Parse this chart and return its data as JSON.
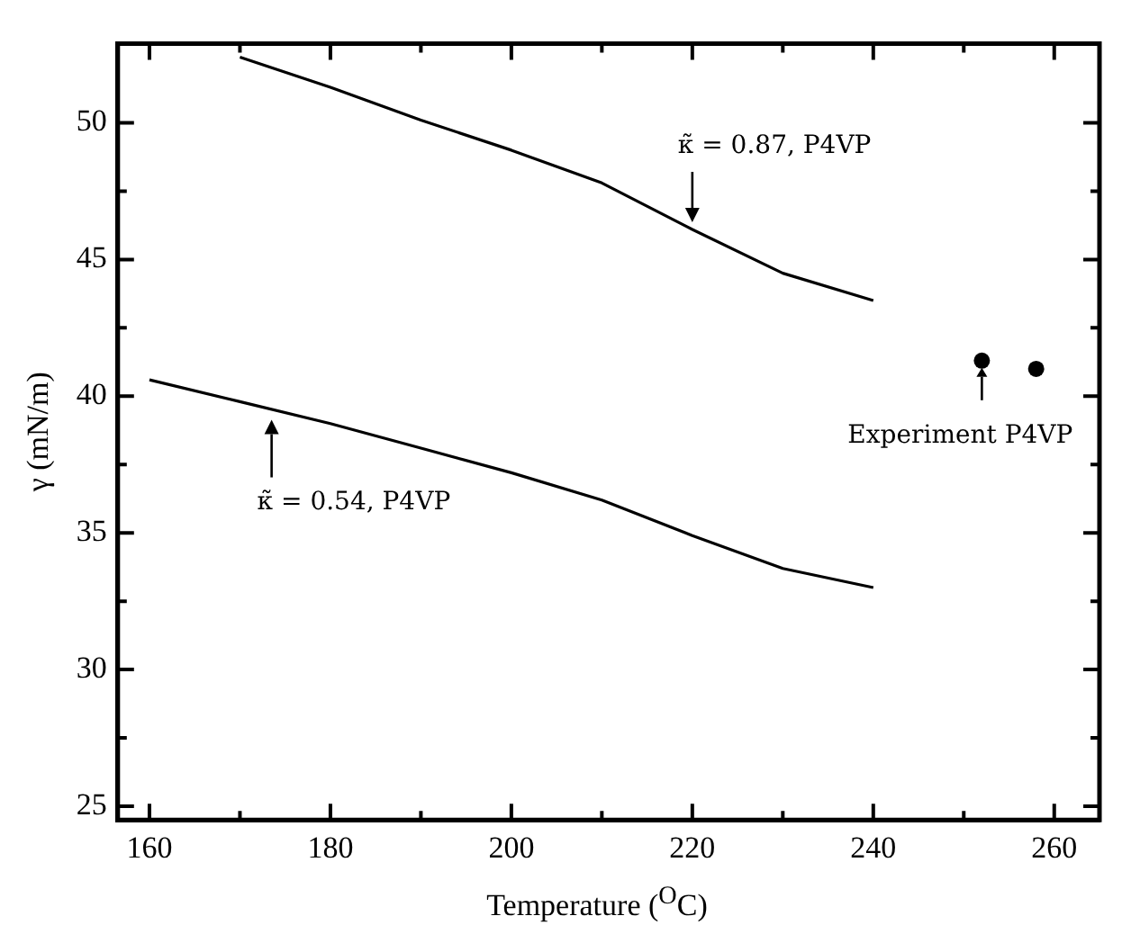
{
  "chart_data": {
    "type": "line",
    "xlabel": "Temperature ($^{O}$C)",
    "ylabel": "γ (mN/m)",
    "xlim": [
      156.5,
      265
    ],
    "ylim": [
      24.5,
      52.9
    ],
    "xticks": [
      160,
      {
        "value": 170,
        "label": null
      },
      180,
      {
        "value": 190,
        "label": null
      },
      200,
      {
        "value": 210,
        "label": null
      },
      220,
      {
        "value": 230,
        "label": null
      },
      240,
      {
        "value": 250,
        "label": null
      },
      260
    ],
    "yticks": [
      25,
      {
        "value": 27.5,
        "label": null
      },
      30,
      {
        "value": 32.5,
        "label": null
      },
      35,
      {
        "value": 37.5,
        "label": null
      },
      40,
      {
        "value": 42.5,
        "label": null
      },
      45,
      {
        "value": 47.5,
        "label": null
      },
      50
    ],
    "grid": false,
    "series": [
      {
        "color": "#000000",
        "marker": "none",
        "line_style": "solid",
        "x": [
          170,
          180,
          190,
          200,
          210,
          220,
          230,
          240
        ],
        "values": [
          52.4,
          51.3,
          50.1,
          49.0,
          47.8,
          46.1,
          44.5,
          43.5
        ]
      },
      {
        "color": "#000000",
        "marker": "none",
        "line_style": "solid",
        "x": [
          160,
          170,
          180,
          190,
          200,
          210,
          220,
          230,
          240
        ],
        "values": [
          40.6,
          39.8,
          39.0,
          38.1,
          37.2,
          36.2,
          34.9,
          33.7,
          33.0
        ]
      },
      {
        "type": "scatter",
        "color": "#000000",
        "marker": "circle",
        "x": [
          252,
          258
        ],
        "values": [
          41.3,
          41.0
        ]
      }
    ],
    "annotations": [
      {
        "text": "κ̃ = 0.87, P4VP",
        "x": 220,
        "y": 46.1
      },
      {
        "text": "κ̃ = 0.54, P4VP",
        "x": 173.5,
        "y": 39.4
      },
      {
        "text": "Experiment P4VP",
        "x": 252,
        "y": 41.3
      }
    ]
  }
}
